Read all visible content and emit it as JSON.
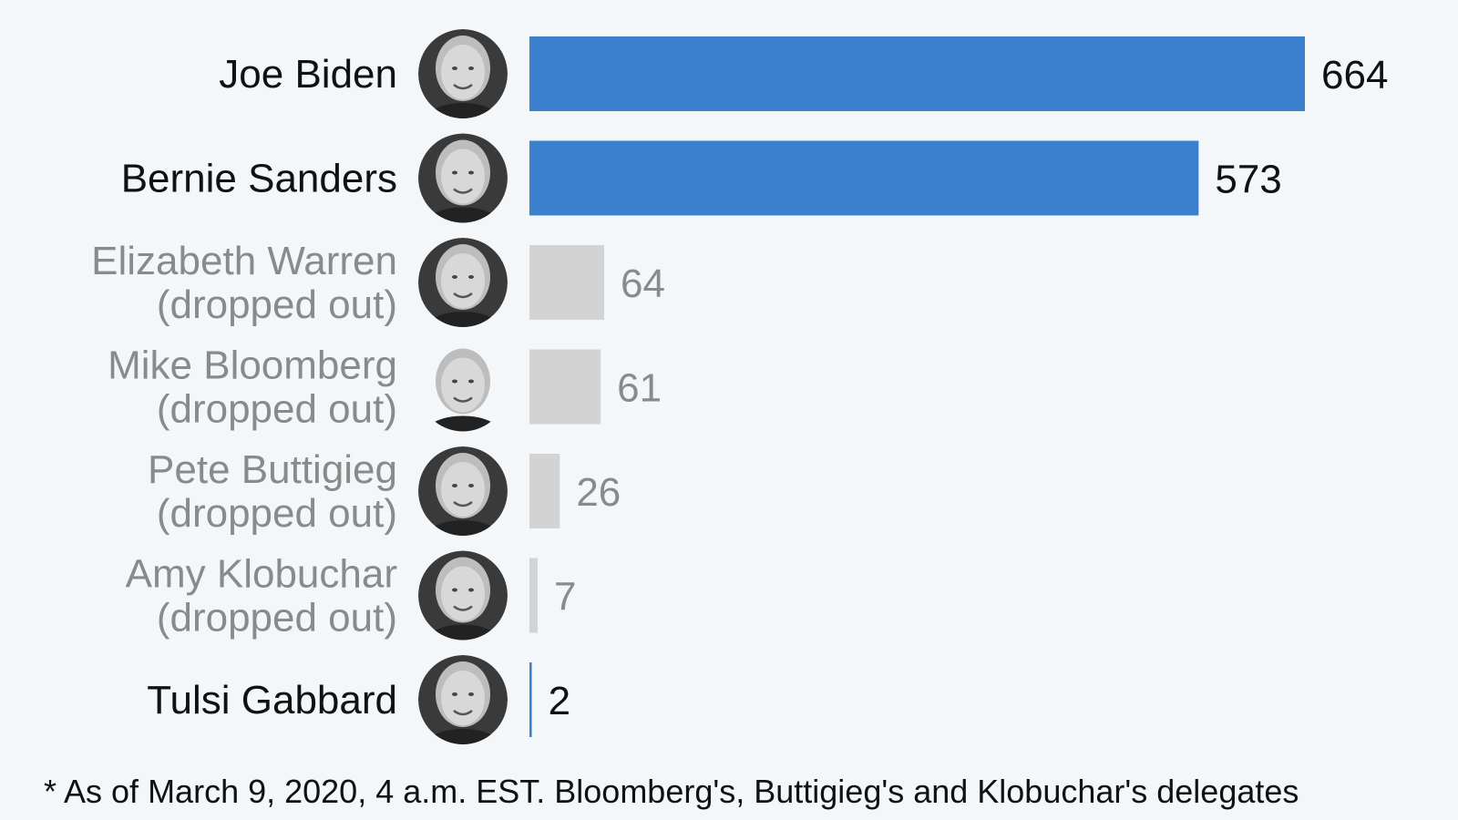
{
  "chart_data": {
    "type": "bar",
    "orientation": "horizontal",
    "x_max": 664,
    "categories": [
      {
        "name_lines": [
          "Joe Biden"
        ],
        "value": 664,
        "status": "active",
        "photo": "joe-biden-portrait"
      },
      {
        "name_lines": [
          "Bernie Sanders"
        ],
        "value": 573,
        "status": "active",
        "photo": "bernie-sanders-portrait"
      },
      {
        "name_lines": [
          "Elizabeth Warren",
          "(dropped out)"
        ],
        "value": 64,
        "status": "dropped",
        "photo": "elizabeth-warren-portrait"
      },
      {
        "name_lines": [
          "Mike Bloomberg",
          "(dropped out)"
        ],
        "value": 61,
        "status": "dropped",
        "photo": "mike-bloomberg-portrait"
      },
      {
        "name_lines": [
          "Pete Buttigieg",
          "(dropped out)"
        ],
        "value": 26,
        "status": "dropped",
        "photo": "pete-buttigieg-portrait"
      },
      {
        "name_lines": [
          "Amy Klobuchar",
          "(dropped out)"
        ],
        "value": 7,
        "status": "dropped",
        "photo": "amy-klobuchar-portrait"
      },
      {
        "name_lines": [
          "Tulsi Gabbard"
        ],
        "value": 2,
        "status": "active",
        "photo": "tulsi-gabbard-portrait"
      }
    ],
    "colors": {
      "active_bar": "#3a80cf",
      "dropped_bar": "#d3d3d3",
      "active_text": "#111111",
      "dropped_text": "#8a8a8a",
      "background": "#f4f7fa"
    }
  },
  "footnote": "* As of March 9, 2020, 4 a.m. EST. Bloomberg's, Buttigieg's and Klobuchar's delegates"
}
